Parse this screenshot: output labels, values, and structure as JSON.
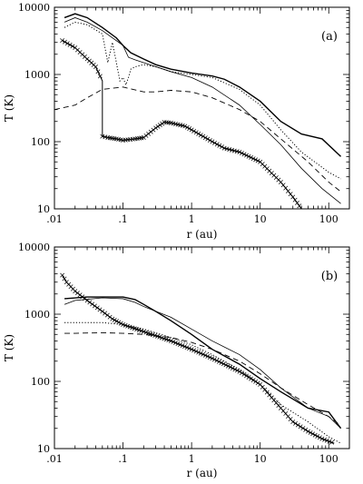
{
  "chart_data": [
    {
      "type": "line",
      "panel_label": "(a)",
      "xlabel": "r (au)",
      "ylabel": "T (K)",
      "xscale": "log",
      "yscale": "log",
      "xlim": [
        0.01,
        200
      ],
      "ylim": [
        10,
        10000
      ],
      "xticks": [
        ".01",
        ".1",
        "1",
        "10",
        "100"
      ],
      "yticks": [
        "10",
        "100",
        "1000",
        "10000"
      ],
      "series": [
        {
          "style": "solid-thick",
          "x": [
            0.014,
            0.02,
            0.03,
            0.05,
            0.08,
            0.1,
            0.13,
            0.2,
            0.3,
            0.5,
            1,
            2,
            3,
            5,
            10,
            20,
            40,
            80,
            150
          ],
          "y": [
            7000,
            8000,
            7000,
            5000,
            3500,
            2700,
            2100,
            1700,
            1400,
            1200,
            1050,
            950,
            850,
            650,
            400,
            200,
            130,
            110,
            60
          ]
        },
        {
          "style": "solid-thin",
          "x": [
            0.014,
            0.02,
            0.03,
            0.05,
            0.1,
            0.12,
            0.15,
            0.2,
            0.5,
            1,
            2,
            5,
            10,
            20,
            40,
            80,
            150
          ],
          "y": [
            6000,
            7000,
            6000,
            4500,
            2700,
            1800,
            1650,
            1500,
            1100,
            900,
            650,
            350,
            180,
            90,
            40,
            20,
            12
          ]
        },
        {
          "style": "dotted",
          "x": [
            0.014,
            0.02,
            0.03,
            0.05,
            0.06,
            0.07,
            0.08,
            0.09,
            0.1,
            0.11,
            0.12,
            0.13,
            0.15,
            0.2,
            0.3,
            0.5,
            1,
            2,
            5,
            10,
            20,
            40,
            100,
            150
          ],
          "y": [
            5000,
            6000,
            5500,
            4000,
            1500,
            3000,
            1500,
            800,
            900,
            700,
            900,
            1200,
            1300,
            1400,
            1300,
            1100,
            1000,
            900,
            600,
            350,
            150,
            70,
            35,
            28
          ]
        },
        {
          "style": "dashed",
          "x": [
            0.01,
            0.02,
            0.03,
            0.05,
            0.1,
            0.2,
            0.3,
            0.5,
            1,
            2,
            5,
            10,
            20,
            50,
            100,
            150
          ],
          "y": [
            300,
            350,
            450,
            600,
            650,
            550,
            550,
            580,
            550,
            450,
            300,
            200,
            110,
            50,
            25,
            18
          ]
        },
        {
          "style": "crosses",
          "x": [
            0.013,
            0.02,
            0.03,
            0.04,
            0.05,
            0.05,
            0.06,
            0.08,
            0.1,
            0.15,
            0.2,
            0.3,
            0.4,
            0.5,
            0.8,
            1,
            2,
            3,
            5,
            10,
            20,
            30,
            40
          ],
          "y": [
            3200,
            2500,
            1700,
            1300,
            800,
            120,
            115,
            110,
            105,
            110,
            115,
            160,
            195,
            190,
            170,
            150,
            100,
            80,
            70,
            50,
            25,
            15,
            10
          ]
        }
      ]
    },
    {
      "type": "line",
      "panel_label": "(b)",
      "xlabel": "r (au)",
      "ylabel": "T (K)",
      "xscale": "log",
      "yscale": "log",
      "xlim": [
        0.01,
        200
      ],
      "ylim": [
        10,
        10000
      ],
      "xticks": [
        ".01",
        ".1",
        "1",
        "10",
        "100"
      ],
      "yticks": [
        "10",
        "100",
        "1000",
        "10000"
      ],
      "series": [
        {
          "style": "solid-thick",
          "x": [
            0.014,
            0.02,
            0.03,
            0.05,
            0.1,
            0.15,
            0.2,
            0.3,
            0.5,
            1,
            2,
            5,
            10,
            20,
            50,
            100,
            150
          ],
          "y": [
            1700,
            1750,
            1800,
            1800,
            1800,
            1650,
            1400,
            1100,
            800,
            500,
            300,
            180,
            110,
            70,
            40,
            35,
            20
          ]
        },
        {
          "style": "solid-thin",
          "x": [
            0.014,
            0.02,
            0.05,
            0.1,
            0.15,
            0.2,
            0.5,
            1,
            2,
            5,
            10,
            20,
            50,
            100,
            150
          ],
          "y": [
            1400,
            1600,
            1750,
            1700,
            1500,
            1300,
            900,
            600,
            400,
            250,
            150,
            80,
            40,
            30,
            20
          ]
        },
        {
          "style": "dotted",
          "x": [
            0.014,
            0.02,
            0.05,
            0.1,
            0.2,
            0.5,
            1,
            2,
            5,
            10,
            20,
            50,
            100,
            150
          ],
          "y": [
            750,
            750,
            750,
            700,
            600,
            450,
            350,
            250,
            150,
            90,
            45,
            25,
            15,
            12
          ]
        },
        {
          "style": "dashed",
          "x": [
            0.014,
            0.02,
            0.05,
            0.1,
            0.2,
            0.5,
            1,
            2,
            5,
            10,
            20,
            50,
            100,
            150
          ],
          "y": [
            520,
            520,
            530,
            520,
            500,
            450,
            380,
            300,
            200,
            130,
            80,
            45,
            30,
            22
          ]
        },
        {
          "style": "crosses",
          "x": [
            0.013,
            0.015,
            0.02,
            0.03,
            0.05,
            0.07,
            0.1,
            0.2,
            0.5,
            1,
            2,
            5,
            10,
            20,
            30,
            50,
            80,
            120
          ],
          "y": [
            3800,
            3000,
            2200,
            1600,
            1100,
            850,
            700,
            550,
            400,
            300,
            220,
            140,
            90,
            40,
            25,
            18,
            14,
            12
          ]
        }
      ]
    }
  ]
}
